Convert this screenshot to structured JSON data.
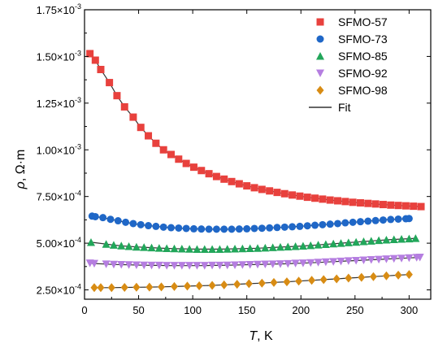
{
  "chart_data": {
    "type": "scatter",
    "title": "",
    "xlabel_italic": "T",
    "xlabel_rest": ", K",
    "ylabel_italic": "ρ",
    "ylabel_rest": ", Ω·m",
    "xlim": [
      0,
      320
    ],
    "ylim": [
      0.0002,
      0.00175
    ],
    "x_ticks": [
      0,
      50,
      100,
      150,
      200,
      250,
      300
    ],
    "x_tick_labels": [
      "0",
      "50",
      "100",
      "150",
      "200",
      "250",
      "300"
    ],
    "y_ticks": [
      0.00025,
      0.0005,
      0.00075,
      0.001,
      0.00125,
      0.0015,
      0.00175
    ],
    "y_tick_labels": [
      {
        "mantissa": "2.50×10",
        "exp": "-4"
      },
      {
        "mantissa": "5.00×10",
        "exp": "-4"
      },
      {
        "mantissa": "7.50×10",
        "exp": "-4"
      },
      {
        "mantissa": "1.00×10",
        "exp": "-3"
      },
      {
        "mantissa": "1.25×10",
        "exp": "-3"
      },
      {
        "mantissa": "1.50×10",
        "exp": "-3"
      },
      {
        "mantissa": "1.75×10",
        "exp": "-3"
      }
    ],
    "grid": false,
    "legend_position": "top-right",
    "fit_label": "Fit",
    "fit_color": "#333333",
    "series": [
      {
        "name": "SFMO-57",
        "marker": "square",
        "color": "#e8413d",
        "x": [
          5,
          10,
          15,
          23,
          30,
          37,
          45,
          52,
          59,
          66,
          73,
          80,
          87,
          94,
          101,
          108,
          115,
          122,
          129,
          136,
          143,
          150,
          157,
          164,
          171,
          178,
          185,
          192,
          199,
          206,
          213,
          220,
          227,
          234,
          241,
          248,
          255,
          262,
          269,
          276,
          283,
          290,
          297,
          304,
          311
        ],
        "y": [
          0.001515,
          0.00148,
          0.00143,
          0.00136,
          0.00129,
          0.00123,
          0.001175,
          0.00112,
          0.001075,
          0.001035,
          0.001,
          0.000975,
          0.00095,
          0.000927,
          0.000907,
          0.000889,
          0.000872,
          0.000857,
          0.000843,
          0.00083,
          0.000818,
          0.000807,
          0.000797,
          0.000788,
          0.00078,
          0.000772,
          0.000765,
          0.000758,
          0.000752,
          0.000746,
          0.000741,
          0.000736,
          0.000731,
          0.000727,
          0.000723,
          0.000719,
          0.000716,
          0.000713,
          0.00071,
          0.000707,
          0.000704,
          0.000702,
          0.0007,
          0.000698,
          0.000696
        ]
      },
      {
        "name": "SFMO-73",
        "marker": "circle",
        "color": "#1f67c7",
        "x": [
          7,
          10,
          17,
          24,
          31,
          38,
          45,
          52,
          59,
          66,
          73,
          80,
          87,
          94,
          101,
          108,
          115,
          122,
          129,
          136,
          143,
          150,
          157,
          164,
          171,
          178,
          185,
          192,
          199,
          206,
          213,
          220,
          227,
          234,
          241,
          248,
          255,
          262,
          269,
          276,
          283,
          290,
          297,
          300
        ],
        "y": [
          0.000645,
          0.000642,
          0.000637,
          0.000628,
          0.00062,
          0.000612,
          0.000605,
          0.000599,
          0.000594,
          0.00059,
          0.000586,
          0.000583,
          0.000581,
          0.000579,
          0.000577,
          0.000576,
          0.000575,
          0.000575,
          0.000575,
          0.000575,
          0.000576,
          0.000577,
          0.000579,
          0.00058,
          0.000582,
          0.000584,
          0.000586,
          0.000588,
          0.00059,
          0.000593,
          0.000596,
          0.000599,
          0.000602,
          0.000605,
          0.000609,
          0.000612,
          0.000615,
          0.000618,
          0.000621,
          0.000624,
          0.000627,
          0.000629,
          0.000631,
          0.000632
        ]
      },
      {
        "name": "SFMO-85",
        "marker": "triangle-up",
        "color": "#22a65a",
        "x": [
          6,
          20,
          27,
          34,
          41,
          48,
          55,
          62,
          69,
          76,
          83,
          90,
          97,
          104,
          111,
          118,
          125,
          132,
          139,
          146,
          153,
          160,
          167,
          174,
          181,
          188,
          195,
          202,
          209,
          216,
          223,
          230,
          237,
          244,
          251,
          258,
          265,
          272,
          279,
          286,
          293,
          300,
          306
        ],
        "y": [
          0.000505,
          0.000495,
          0.00049,
          0.000486,
          0.000483,
          0.00048,
          0.000478,
          0.000476,
          0.000474,
          0.000472,
          0.000471,
          0.00047,
          0.000469,
          0.000468,
          0.000468,
          0.000468,
          0.000468,
          0.000469,
          0.00047,
          0.000471,
          0.000472,
          0.000473,
          0.000475,
          0.000477,
          0.000479,
          0.000481,
          0.000483,
          0.000485,
          0.000488,
          0.000491,
          0.000494,
          0.000497,
          0.0005,
          0.000503,
          0.000506,
          0.000509,
          0.000512,
          0.000515,
          0.000518,
          0.00052,
          0.000522,
          0.000524,
          0.000526
        ]
      },
      {
        "name": "SFMO-92",
        "marker": "triangle-down",
        "color": "#b57ee0",
        "x": [
          5,
          9,
          20,
          27,
          34,
          41,
          48,
          55,
          62,
          69,
          76,
          83,
          90,
          97,
          104,
          111,
          118,
          125,
          132,
          139,
          146,
          153,
          160,
          167,
          174,
          181,
          188,
          195,
          202,
          209,
          216,
          223,
          230,
          237,
          244,
          251,
          258,
          265,
          272,
          279,
          286,
          293,
          300,
          307,
          310
        ],
        "y": [
          0.000393,
          0.000391,
          0.000388,
          0.000386,
          0.000385,
          0.000384,
          0.000383,
          0.000382,
          0.000381,
          0.000381,
          0.00038,
          0.00038,
          0.00038,
          0.00038,
          0.00038,
          0.00038,
          0.000381,
          0.000381,
          0.000382,
          0.000383,
          0.000384,
          0.000385,
          0.000386,
          0.000387,
          0.000388,
          0.000389,
          0.00039,
          0.000392,
          0.000393,
          0.000395,
          0.000397,
          0.000399,
          0.000401,
          0.000403,
          0.000405,
          0.000407,
          0.000409,
          0.000411,
          0.000413,
          0.000415,
          0.000417,
          0.000419,
          0.000421,
          0.000423,
          0.000424
        ]
      },
      {
        "name": "SFMO-98",
        "marker": "diamond",
        "color": "#d88c14",
        "x": [
          9,
          15,
          25,
          37,
          48,
          60,
          71,
          83,
          95,
          106,
          118,
          129,
          141,
          152,
          164,
          175,
          187,
          198,
          210,
          221,
          233,
          244,
          256,
          267,
          279,
          290,
          300
        ],
        "y": [
          0.000262,
          0.000262,
          0.000262,
          0.000263,
          0.000264,
          0.000265,
          0.000266,
          0.000268,
          0.00027,
          0.000272,
          0.000274,
          0.000277,
          0.00028,
          0.000283,
          0.000286,
          0.00029,
          0.000293,
          0.000297,
          0.000301,
          0.000305,
          0.000309,
          0.000313,
          0.000317,
          0.000321,
          0.000325,
          0.000329,
          0.000332
        ]
      }
    ]
  }
}
